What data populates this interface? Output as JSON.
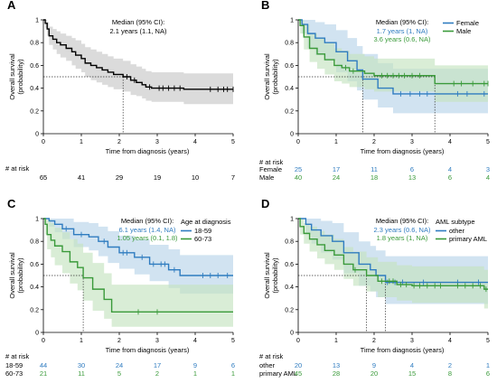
{
  "colors": {
    "overall": "#000000",
    "ci_overall": "#c8c8c8",
    "blue": "#2f7cc0",
    "green": "#3a9a3a",
    "ci_blue": "#b9d4ea",
    "ci_green": "#c5e3c0"
  },
  "chart_data": [
    {
      "panel": "A",
      "type": "line",
      "step": true,
      "xlabel": "Time from diagnosis (years)",
      "ylabel": "Overall survival (probability)",
      "xlim": [
        0,
        5
      ],
      "ylim": [
        0,
        1
      ],
      "xticks": [
        "0",
        "1",
        "2",
        "3",
        "4",
        "5"
      ],
      "yticks": [
        "0",
        "0.2",
        "0.4",
        "0.6",
        "0.8",
        "1"
      ],
      "annotation_title": "Median (95% CI):",
      "annotations": [
        {
          "text": "2.1 years (1.1, NA)",
          "series": "overall"
        }
      ],
      "medians": [
        2.1
      ],
      "series": [
        {
          "key": "overall",
          "color": "#000000",
          "ci_color": "#c8c8c8",
          "x": [
            0,
            0.05,
            0.1,
            0.15,
            0.25,
            0.35,
            0.45,
            0.6,
            0.75,
            0.85,
            1.0,
            1.1,
            1.25,
            1.4,
            1.55,
            1.7,
            1.85,
            2.1,
            2.3,
            2.45,
            2.6,
            2.7,
            2.85,
            3.0,
            3.7,
            5.0
          ],
          "y": [
            1.0,
            0.97,
            0.92,
            0.86,
            0.83,
            0.8,
            0.78,
            0.75,
            0.72,
            0.69,
            0.66,
            0.62,
            0.6,
            0.58,
            0.56,
            0.54,
            0.52,
            0.5,
            0.47,
            0.45,
            0.43,
            0.41,
            0.4,
            0.4,
            0.39,
            0.39
          ],
          "ci_lo": [
            1.0,
            0.93,
            0.86,
            0.78,
            0.74,
            0.7,
            0.67,
            0.64,
            0.6,
            0.57,
            0.54,
            0.5,
            0.47,
            0.45,
            0.43,
            0.41,
            0.39,
            0.37,
            0.34,
            0.33,
            0.31,
            0.29,
            0.28,
            0.28,
            0.26,
            0.26
          ],
          "ci_hi": [
            1.0,
            1.0,
            0.98,
            0.94,
            0.92,
            0.9,
            0.88,
            0.86,
            0.84,
            0.82,
            0.79,
            0.76,
            0.74,
            0.72,
            0.7,
            0.68,
            0.66,
            0.64,
            0.61,
            0.59,
            0.57,
            0.55,
            0.54,
            0.54,
            0.53,
            0.53
          ],
          "censor": [
            2.2,
            2.4,
            2.8,
            3.05,
            3.15,
            3.3,
            3.45,
            3.6,
            4.4,
            4.6,
            4.75,
            4.85,
            5.0
          ]
        }
      ],
      "risk_title": "# at risk",
      "risk_rows": [
        {
          "label": "",
          "color": "#000000",
          "values": [
            65,
            41,
            29,
            19,
            10,
            7
          ]
        }
      ]
    },
    {
      "panel": "B",
      "type": "line",
      "step": true,
      "xlabel": "Time from diagnosis (years)",
      "ylabel": "Overall survival (probability)",
      "xlim": [
        0,
        5
      ],
      "ylim": [
        0,
        1
      ],
      "xticks": [
        "0",
        "1",
        "2",
        "3",
        "4",
        "5"
      ],
      "yticks": [
        "0",
        "0.2",
        "0.4",
        "0.6",
        "0.8",
        "1"
      ],
      "annotation_title": "Median (95% CI):",
      "annotations": [
        {
          "text": "1.7 years (1, NA)",
          "series": "blue"
        },
        {
          "text": "3.6 years (0.6, NA)",
          "series": "green"
        }
      ],
      "medians": [
        1.7,
        3.6
      ],
      "legend": [
        "Female",
        "Male"
      ],
      "series": [
        {
          "key": "blue",
          "name": "Female",
          "color": "#2f7cc0",
          "ci_color": "#b9d4ea",
          "x": [
            0,
            0.1,
            0.25,
            0.45,
            0.7,
            1.0,
            1.3,
            1.55,
            1.7,
            2.1,
            2.5,
            3.6,
            5.0
          ],
          "y": [
            1.0,
            0.96,
            0.88,
            0.84,
            0.8,
            0.72,
            0.64,
            0.56,
            0.48,
            0.4,
            0.35,
            0.35,
            0.35
          ],
          "ci_lo": [
            1.0,
            0.88,
            0.75,
            0.69,
            0.64,
            0.54,
            0.46,
            0.38,
            0.3,
            0.23,
            0.18,
            0.18,
            0.18
          ],
          "ci_hi": [
            1.0,
            1.0,
            1.0,
            0.98,
            0.96,
            0.91,
            0.84,
            0.77,
            0.7,
            0.62,
            0.57,
            0.57,
            0.57
          ],
          "censor": [
            2.7,
            2.95,
            3.2,
            3.4,
            4.2,
            4.45,
            4.9
          ]
        },
        {
          "key": "green",
          "name": "Male",
          "color": "#3a9a3a",
          "ci_color": "#c5e3c0",
          "x": [
            0,
            0.05,
            0.15,
            0.3,
            0.5,
            0.7,
            0.95,
            1.15,
            1.35,
            1.55,
            1.75,
            2.0,
            3.6,
            5.0
          ],
          "y": [
            1.0,
            0.95,
            0.85,
            0.75,
            0.7,
            0.65,
            0.6,
            0.58,
            0.55,
            0.55,
            0.53,
            0.51,
            0.44,
            0.44
          ],
          "ci_lo": [
            1.0,
            0.88,
            0.74,
            0.63,
            0.57,
            0.52,
            0.46,
            0.44,
            0.41,
            0.41,
            0.39,
            0.37,
            0.28,
            0.28
          ],
          "ci_hi": [
            1.0,
            1.0,
            0.96,
            0.88,
            0.84,
            0.8,
            0.75,
            0.73,
            0.7,
            0.7,
            0.68,
            0.66,
            0.6,
            0.6
          ],
          "censor": [
            1.25,
            1.45,
            2.2,
            2.35,
            2.5,
            2.65,
            2.8,
            3.0,
            3.2,
            4.1,
            4.3,
            4.6,
            4.9,
            5.0
          ]
        }
      ],
      "risk_title": "# at risk",
      "risk_rows": [
        {
          "label": "Female",
          "color": "#2f7cc0",
          "values": [
            25,
            17,
            11,
            6,
            4,
            3
          ]
        },
        {
          "label": "Male",
          "color": "#3a9a3a",
          "values": [
            40,
            24,
            18,
            13,
            6,
            4
          ]
        }
      ]
    },
    {
      "panel": "C",
      "type": "line",
      "step": true,
      "xlabel": "Time from diagnosis (years)",
      "ylabel": "Overall survival (probability)",
      "xlim": [
        0,
        5
      ],
      "ylim": [
        0,
        1
      ],
      "xticks": [
        "0",
        "1",
        "2",
        "3",
        "4",
        "5"
      ],
      "yticks": [
        "0",
        "0.2",
        "0.4",
        "0.6",
        "0.8",
        "1"
      ],
      "annotation_title": "Median (95% CI):",
      "annotations": [
        {
          "text": "6.1 years (1.4, NA)",
          "series": "blue"
        },
        {
          "text": "1.05 years (0.1, 1.8)",
          "series": "green"
        }
      ],
      "medians": [
        1.05
      ],
      "legend_title": "Age at diagnosis",
      "legend": [
        "18-59",
        "60-73"
      ],
      "series": [
        {
          "key": "blue",
          "name": "18-59",
          "color": "#2f7cc0",
          "ci_color": "#b9d4ea",
          "x": [
            0,
            0.15,
            0.3,
            0.5,
            0.8,
            1.2,
            1.45,
            1.7,
            2.0,
            2.4,
            2.8,
            3.3,
            3.6,
            5.0
          ],
          "y": [
            1.0,
            0.98,
            0.95,
            0.91,
            0.86,
            0.84,
            0.8,
            0.75,
            0.7,
            0.66,
            0.6,
            0.55,
            0.5,
            0.5
          ],
          "ci_lo": [
            1.0,
            0.93,
            0.88,
            0.82,
            0.75,
            0.72,
            0.67,
            0.61,
            0.56,
            0.51,
            0.45,
            0.39,
            0.34,
            0.34
          ],
          "ci_hi": [
            1.0,
            1.0,
            1.0,
            1.0,
            0.97,
            0.96,
            0.93,
            0.89,
            0.85,
            0.82,
            0.77,
            0.73,
            0.68,
            0.68
          ],
          "censor": [
            0.6,
            1.0,
            1.6,
            2.1,
            2.2,
            2.6,
            2.9,
            3.1,
            3.2,
            3.45,
            4.2,
            4.4,
            4.6,
            4.85
          ]
        },
        {
          "key": "green",
          "name": "60-73",
          "color": "#3a9a3a",
          "ci_color": "#c5e3c0",
          "x": [
            0,
            0.05,
            0.1,
            0.2,
            0.3,
            0.5,
            0.7,
            0.9,
            1.05,
            1.3,
            1.6,
            1.8,
            2.3,
            5.0
          ],
          "y": [
            1.0,
            0.95,
            0.86,
            0.81,
            0.76,
            0.71,
            0.62,
            0.57,
            0.48,
            0.38,
            0.29,
            0.18,
            0.18,
            0.18
          ],
          "ci_lo": [
            1.0,
            0.86,
            0.73,
            0.66,
            0.59,
            0.52,
            0.43,
            0.37,
            0.28,
            0.19,
            0.12,
            0.05,
            0.05,
            0.05
          ],
          "ci_hi": [
            1.0,
            1.0,
            0.99,
            0.96,
            0.92,
            0.88,
            0.82,
            0.78,
            0.7,
            0.61,
            0.52,
            0.42,
            0.42,
            0.42
          ],
          "censor": [
            2.5,
            3.0
          ]
        }
      ],
      "risk_title": "# at risk",
      "risk_rows": [
        {
          "label": "18-59",
          "color": "#2f7cc0",
          "values": [
            44,
            30,
            24,
            17,
            9,
            6
          ]
        },
        {
          "label": "60-73",
          "color": "#3a9a3a",
          "values": [
            21,
            11,
            5,
            2,
            1,
            1
          ]
        }
      ]
    },
    {
      "panel": "D",
      "type": "line",
      "step": true,
      "xlabel": "Time from diagnosis (years)",
      "ylabel": "Overall survival (probability)",
      "xlim": [
        0,
        5
      ],
      "ylim": [
        0,
        1
      ],
      "xticks": [
        "0",
        "1",
        "2",
        "3",
        "4",
        "5"
      ],
      "yticks": [
        "0",
        "0.2",
        "0.4",
        "0.6",
        "0.8",
        "1"
      ],
      "annotation_title": "Median (95% CI):",
      "annotations": [
        {
          "text": "2.3 years (0.6, NA)",
          "series": "blue"
        },
        {
          "text": "1.8 years (1, NA)",
          "series": "green"
        }
      ],
      "medians": [
        1.8,
        2.3
      ],
      "legend_title": "AML subtype",
      "legend": [
        "other",
        "primary AML"
      ],
      "series": [
        {
          "key": "blue",
          "name": "other",
          "color": "#2f7cc0",
          "ci_color": "#b9d4ea",
          "x": [
            0,
            0.2,
            0.35,
            0.6,
            0.9,
            1.2,
            1.6,
            1.9,
            2.05,
            2.3,
            2.6,
            5.0
          ],
          "y": [
            1.0,
            0.95,
            0.9,
            0.85,
            0.8,
            0.7,
            0.6,
            0.55,
            0.5,
            0.44,
            0.44,
            0.44
          ],
          "ci_lo": [
            1.0,
            0.86,
            0.78,
            0.7,
            0.64,
            0.52,
            0.41,
            0.36,
            0.31,
            0.25,
            0.25,
            0.25
          ],
          "ci_hi": [
            1.0,
            1.0,
            1.0,
            0.98,
            0.96,
            0.88,
            0.8,
            0.76,
            0.72,
            0.67,
            0.67,
            0.67
          ],
          "censor": [
            2.35,
            2.55,
            2.75,
            3.3,
            4.2,
            4.75
          ]
        },
        {
          "key": "green",
          "name": "primary AML",
          "color": "#3a9a3a",
          "ci_color": "#c5e3c0",
          "x": [
            0,
            0.05,
            0.15,
            0.3,
            0.5,
            0.7,
            0.95,
            1.2,
            1.45,
            1.8,
            2.1,
            2.6,
            3.0,
            4.9,
            5.0
          ],
          "y": [
            1.0,
            0.93,
            0.87,
            0.82,
            0.77,
            0.72,
            0.68,
            0.6,
            0.55,
            0.5,
            0.45,
            0.42,
            0.41,
            0.38,
            0.38
          ],
          "ci_lo": [
            1.0,
            0.86,
            0.78,
            0.71,
            0.65,
            0.6,
            0.55,
            0.47,
            0.41,
            0.36,
            0.31,
            0.28,
            0.26,
            0.21,
            0.21
          ],
          "ci_hi": [
            1.0,
            1.0,
            0.96,
            0.93,
            0.89,
            0.86,
            0.82,
            0.75,
            0.71,
            0.66,
            0.62,
            0.59,
            0.58,
            0.55,
            0.55
          ],
          "censor": [
            1.5,
            2.2,
            2.4,
            2.5,
            2.7,
            2.85,
            3.05,
            3.2,
            3.4,
            3.6,
            3.75,
            4.2,
            4.4,
            4.6,
            4.8,
            4.95
          ]
        }
      ],
      "risk_title": "# at risk",
      "risk_rows": [
        {
          "label": "other",
          "color": "#2f7cc0",
          "values": [
            20,
            13,
            9,
            4,
            2,
            1
          ]
        },
        {
          "label": "primary AML",
          "color": "#3a9a3a",
          "values": [
            45,
            28,
            20,
            15,
            8,
            6
          ]
        }
      ]
    }
  ]
}
